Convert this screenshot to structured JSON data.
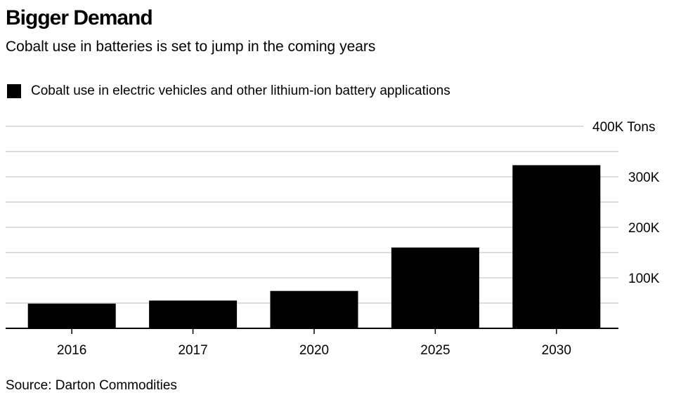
{
  "chart_data": {
    "type": "bar",
    "title": "Bigger Demand",
    "subtitle": "Cobalt use in batteries is set to jump in the coming years",
    "source": "Source: Darton Commodities",
    "categories": [
      "2016",
      "2017",
      "2020",
      "2025",
      "2030"
    ],
    "series": [
      {
        "name": "Cobalt use in electric vehicles and other lithium-ion battery applications",
        "color": "#000000",
        "values": [
          49,
          55,
          74,
          160,
          323
        ]
      }
    ],
    "ylim": [
      0,
      400
    ],
    "yticks": [
      {
        "value": 100,
        "label": "100K"
      },
      {
        "value": 200,
        "label": "200K"
      },
      {
        "value": 300,
        "label": "300K"
      },
      {
        "value": 400,
        "label": "400K Tons"
      }
    ],
    "minor_gridlines": [
      50,
      150,
      250,
      350
    ],
    "grid": true,
    "legend_position": "top-left",
    "y_axis_position": "right",
    "bar_color": "#000000",
    "grid_color": "#dcdcdc"
  }
}
